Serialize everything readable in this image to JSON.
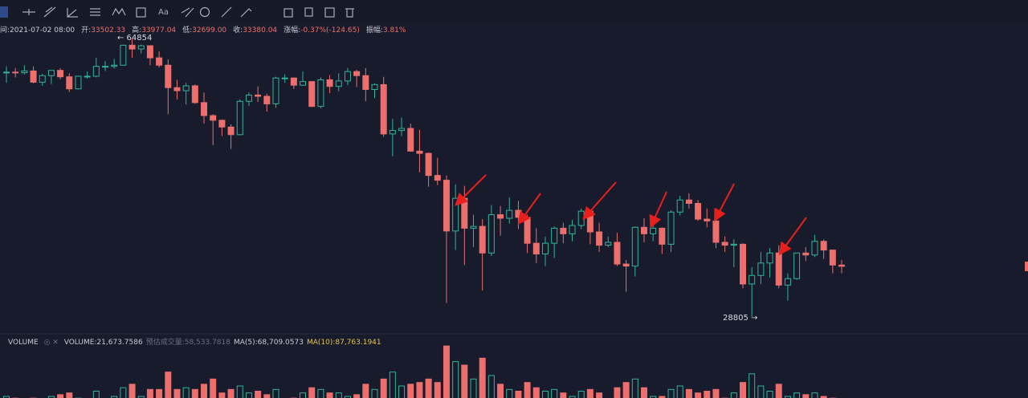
{
  "chart_data": {
    "type": "candlestick",
    "toolbar_text": "Aa",
    "info": [
      {
        "label": "间:",
        "value": "2021-07-02 08:00"
      },
      {
        "label": "开:",
        "value": "33502.33"
      },
      {
        "label": "高:",
        "value": "33977.04"
      },
      {
        "label": "低:",
        "value": "32699.00"
      },
      {
        "label": "收:",
        "value": "33380.04"
      },
      {
        "label": "涨幅:",
        "value": "-0.37%(-124.65)"
      },
      {
        "label": "振幅:",
        "value": "3.81%"
      }
    ],
    "high_label": "← 64854",
    "low_label": "28805 →",
    "up_color": "#2fb59b",
    "down_color": "#ec6f6c",
    "log_scale": true,
    "ylim": [
      27480,
      67960
    ],
    "open": [
      58800,
      58800,
      58700,
      59000,
      57100,
      58200,
      59100,
      58000,
      56000,
      58100,
      58100,
      59800,
      59800,
      60000,
      63600,
      62900,
      63500,
      61300,
      60000,
      56200,
      55700,
      56500,
      53800,
      51800,
      51100,
      50100,
      49000,
      54000,
      55000,
      54800,
      53600,
      57800,
      57800,
      56600,
      57200,
      53200,
      57500,
      56400,
      57300,
      58900,
      58200,
      55900,
      56700,
      49100,
      49600,
      49900,
      46700,
      46400,
      43500,
      42900,
      37000,
      40700,
      37300,
      37500,
      34700,
      38800,
      38400,
      39300,
      38500,
      35700,
      34600,
      35700,
      37300,
      36700,
      37600,
      39200,
      36900,
      35500,
      35800,
      33600,
      33400,
      37400,
      36700,
      37300,
      35600,
      39100,
      40500,
      40100,
      38300,
      38100,
      35800,
      35500,
      35600,
      31700,
      32500,
      33700,
      34700,
      31600,
      32200,
      34700,
      34500,
      35900,
      35000,
      33502.33
    ],
    "high": [
      59800,
      59500,
      60000,
      59800,
      58500,
      59000,
      59500,
      58600,
      58200,
      58900,
      61300,
      60700,
      61100,
      63700,
      64854,
      63700,
      63500,
      62500,
      61000,
      57500,
      57000,
      56700,
      55400,
      52000,
      51200,
      50500,
      54300,
      55400,
      56400,
      55200,
      58000,
      58400,
      57900,
      58900,
      57200,
      57900,
      58300,
      58600,
      59500,
      59200,
      59500,
      56900,
      58000,
      51300,
      51500,
      50600,
      49700,
      46500,
      45800,
      43500,
      42400,
      42200,
      38800,
      38300,
      39900,
      39800,
      40800,
      40400,
      38800,
      37300,
      36400,
      37500,
      37900,
      38200,
      39500,
      39300,
      37900,
      36400,
      36800,
      34000,
      37500,
      38400,
      37700,
      37400,
      39300,
      41000,
      41300,
      40500,
      39500,
      38200,
      36400,
      36100,
      35700,
      33300,
      34800,
      35200,
      35500,
      32700,
      34700,
      35300,
      36600,
      36100,
      35000,
      33977.04
    ],
    "low": [
      57000,
      57900,
      58400,
      56900,
      56500,
      56800,
      57600,
      55500,
      55900,
      57700,
      57900,
      59000,
      59400,
      60000,
      61300,
      62100,
      60000,
      59600,
      52000,
      54300,
      53500,
      53600,
      50600,
      47500,
      48800,
      47000,
      48900,
      53300,
      53900,
      52400,
      53000,
      57000,
      56000,
      56500,
      53100,
      52900,
      55300,
      55600,
      56600,
      56300,
      54000,
      54500,
      48700,
      46000,
      48800,
      46600,
      43900,
      42100,
      42300,
      30000,
      35000,
      33500,
      35300,
      31100,
      34400,
      36500,
      37800,
      37200,
      34700,
      33700,
      33400,
      34200,
      35700,
      35900,
      37200,
      35600,
      34800,
      35300,
      33400,
      31000,
      32400,
      35800,
      35900,
      34600,
      34800,
      38700,
      39500,
      38100,
      37400,
      35200,
      34800,
      33300,
      31300,
      28805,
      31700,
      32300,
      31300,
      30200,
      32100,
      33900,
      34300,
      34100,
      32700,
      32699
    ],
    "close": [
      58800,
      58700,
      59000,
      57100,
      58200,
      59100,
      58000,
      56000,
      58100,
      58100,
      59800,
      59800,
      60000,
      63600,
      62900,
      63500,
      61300,
      60000,
      56200,
      55700,
      56500,
      53800,
      51800,
      51100,
      50100,
      49000,
      54000,
      55000,
      54800,
      53600,
      57800,
      57800,
      56600,
      57200,
      53200,
      57500,
      56400,
      57300,
      58900,
      58200,
      55900,
      56700,
      49100,
      49600,
      49900,
      46700,
      46400,
      43500,
      42900,
      37000,
      40700,
      37300,
      37500,
      34700,
      38800,
      38400,
      39300,
      38500,
      35700,
      34600,
      35700,
      37300,
      36700,
      37600,
      39200,
      36900,
      35500,
      35800,
      33600,
      33400,
      37400,
      36700,
      37300,
      35600,
      39100,
      40500,
      40100,
      38300,
      38100,
      35800,
      35500,
      35600,
      31700,
      32500,
      33700,
      34700,
      31600,
      32200,
      34700,
      34500,
      35900,
      35000,
      33500,
      33380.04
    ],
    "volume_panel": {
      "title": "VOLUME",
      "labels": [
        {
          "text": "VOLUME:21,673.7586",
          "style": "normal"
        },
        {
          "text": "预估成交量:58,533.7818",
          "style": "grey"
        },
        {
          "text": "MA(5):68,709.0573",
          "style": "normal"
        },
        {
          "text": "MA(10):87,763.1941",
          "style": "yellow"
        }
      ],
      "ylim": [
        0,
        210000
      ],
      "values": [
        60000,
        55000,
        50000,
        55000,
        50000,
        60000,
        65000,
        70000,
        55000,
        45000,
        75000,
        50000,
        60000,
        85000,
        95000,
        60000,
        80000,
        80000,
        130000,
        80000,
        85000,
        80000,
        95000,
        110000,
        70000,
        80000,
        90000,
        70000,
        75000,
        65000,
        80000,
        50000,
        55000,
        70000,
        85000,
        80000,
        70000,
        70000,
        60000,
        65000,
        95000,
        80000,
        110000,
        130000,
        90000,
        95000,
        100000,
        110000,
        100000,
        205000,
        160000,
        150000,
        110000,
        170000,
        120000,
        95000,
        80000,
        75000,
        100000,
        85000,
        75000,
        80000,
        70000,
        60000,
        75000,
        80000,
        70000,
        40000,
        85000,
        100000,
        110000,
        85000,
        60000,
        60000,
        80000,
        90000,
        80000,
        70000,
        75000,
        80000,
        55000,
        70000,
        100000,
        125000,
        90000,
        75000,
        95000,
        60000,
        70000,
        65000,
        70000,
        60000,
        55000,
        21673.7586
      ]
    }
  }
}
